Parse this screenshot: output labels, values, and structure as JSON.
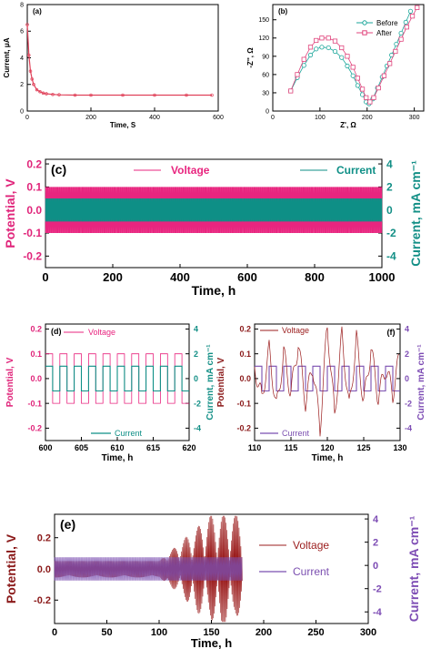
{
  "colors": {
    "voltage": "#e8257f",
    "current_teal": "#0e8f86",
    "current_purple": "#7b4fb0",
    "voltage_e": "#9b1c1c",
    "decay": "#e0425a",
    "eis": "#e0447c",
    "before": "#1aa69a",
    "axis_pink": "#e0247a",
    "axis_teal": "#138f86",
    "axis_purple": "#7d4cb4",
    "axis_red": "#8b1a1a"
  },
  "chart_data": [
    {
      "id": "a",
      "type": "line",
      "panel_label": "(a)",
      "xlabel": "Time, S",
      "ylabel": "Current, μA",
      "xlim": [
        0,
        600
      ],
      "ylim": [
        0,
        8
      ],
      "xticks": [
        "0",
        "200",
        "400",
        "600"
      ],
      "yticks": [
        "0",
        "2",
        "4",
        "6",
        "8"
      ],
      "series": [
        {
          "x": [
            0,
            5,
            10,
            15,
            20,
            30,
            40,
            50,
            60,
            80,
            100,
            150,
            200,
            300,
            400,
            500,
            580
          ],
          "values": [
            6.5,
            4.2,
            3.0,
            2.4,
            2.0,
            1.6,
            1.45,
            1.35,
            1.3,
            1.25,
            1.22,
            1.2,
            1.2,
            1.2,
            1.2,
            1.2,
            1.2
          ]
        }
      ]
    },
    {
      "id": "b",
      "type": "scatter",
      "panel_label": "(b)",
      "xlabel": "Z', Ω",
      "ylabel": "-Z'', Ω",
      "xlim": [
        0,
        320
      ],
      "ylim": [
        0,
        175
      ],
      "xticks": [
        "0",
        "100",
        "200",
        "300"
      ],
      "yticks": [
        "0",
        "30",
        "60",
        "90",
        "120",
        "150"
      ],
      "legend": "top-right",
      "series": [
        {
          "name": "Before",
          "x": [
            38,
            52,
            66,
            80,
            92,
            104,
            118,
            132,
            146,
            158,
            170,
            180,
            190,
            198,
            204,
            212,
            222,
            232,
            242,
            252,
            262,
            272,
            282,
            292
          ],
          "values": [
            33,
            55,
            75,
            92,
            102,
            105,
            104,
            98,
            88,
            74,
            58,
            42,
            27,
            15,
            12,
            20,
            38,
            56,
            74,
            92,
            110,
            128,
            146,
            164
          ]
        },
        {
          "name": "After",
          "x": [
            38,
            52,
            66,
            80,
            92,
            104,
            118,
            132,
            146,
            158,
            170,
            180,
            190,
            198,
            206,
            214,
            224,
            236,
            248,
            260,
            272,
            284,
            296,
            306
          ],
          "values": [
            33,
            60,
            85,
            105,
            116,
            120,
            120,
            115,
            104,
            90,
            72,
            54,
            36,
            22,
            15,
            22,
            38,
            58,
            78,
            98,
            118,
            138,
            156,
            170
          ]
        }
      ]
    },
    {
      "id": "c",
      "type": "line",
      "panel_label": "(c)",
      "xlabel": "Time, h",
      "ylabel": "Potential, V",
      "y2label": "Current, mA cm⁻¹",
      "xlim": [
        0,
        1000
      ],
      "ylim": [
        -0.25,
        0.22
      ],
      "y2lim": [
        -5,
        4.4
      ],
      "xticks": [
        "0",
        "200",
        "400",
        "600",
        "800",
        "1000"
      ],
      "yticks": [
        "-0.2",
        "-0.1",
        "0.0",
        "0.1",
        "0.2"
      ],
      "y2ticks": [
        "-4",
        "-2",
        "0",
        "2",
        "4"
      ],
      "legend": "top",
      "series": [
        {
          "name": "Voltage",
          "amplitude": 0.1,
          "period_h": 2
        },
        {
          "name": "Current",
          "amplitude": 1.0,
          "period_h": 2
        }
      ]
    },
    {
      "id": "d",
      "type": "line",
      "panel_label": "(d)",
      "xlabel": "Time, h",
      "ylabel": "Potential, V",
      "y2label": "Current, mA cm⁻¹",
      "xlim": [
        600,
        620
      ],
      "ylim": [
        -0.25,
        0.22
      ],
      "y2lim": [
        -5,
        4.4
      ],
      "xticks": [
        "600",
        "605",
        "610",
        "615",
        "620"
      ],
      "yticks": [
        "-0.2",
        "-0.1",
        "0.0",
        "0.1",
        "0.2"
      ],
      "y2ticks": [
        "-4",
        "-2",
        "0",
        "2",
        "4"
      ],
      "series": [
        {
          "name": "Voltage",
          "amplitude": 0.1,
          "period_h": 2
        },
        {
          "name": "Current",
          "amplitude": 1.0,
          "period_h": 2
        }
      ]
    },
    {
      "id": "f",
      "type": "line",
      "panel_label": "(f)",
      "xlabel": "Time, h",
      "ylabel": "Potential, V",
      "y2label": "Current, mA cm⁻¹",
      "xlim": [
        110,
        130
      ],
      "ylim": [
        -0.25,
        0.22
      ],
      "y2lim": [
        -5,
        4.4
      ],
      "xticks": [
        "110",
        "115",
        "120",
        "125",
        "130"
      ],
      "yticks": [
        "-0.2",
        "-0.1",
        "0.0",
        "0.1",
        "0.2"
      ],
      "y2ticks": [
        "-4",
        "-2",
        "0",
        "2",
        "4"
      ],
      "series": [
        {
          "name": "Voltage",
          "x": [
            110,
            111,
            112,
            113,
            114,
            115,
            116,
            117,
            118,
            119,
            120,
            121,
            122,
            123,
            124,
            125,
            126,
            127,
            128,
            129,
            130
          ],
          "values": [
            0.05,
            -0.08,
            0.12,
            -0.12,
            0.1,
            -0.06,
            0.14,
            -0.1,
            0.05,
            -0.2,
            0.22,
            -0.15,
            0.18,
            -0.12,
            0.16,
            -0.1,
            0.12,
            -0.08,
            0.04,
            -0.06,
            0.1
          ]
        },
        {
          "name": "Current",
          "amplitude": 1.0,
          "period_h": 2
        }
      ]
    },
    {
      "id": "e",
      "type": "line",
      "panel_label": "(e)",
      "xlabel": "Time, h",
      "ylabel": "Potential, V",
      "y2label": "Current, mA cm⁻¹",
      "xlim": [
        0,
        300
      ],
      "ylim": [
        -0.35,
        0.35
      ],
      "y2lim": [
        -5,
        4.4
      ],
      "xticks": [
        "0",
        "50",
        "100",
        "150",
        "200",
        "250",
        "300"
      ],
      "yticks": [
        "-0.2",
        "0.0",
        "0.2"
      ],
      "y2ticks": [
        "-4",
        "-2",
        "0",
        "2",
        "4"
      ],
      "legend": "right",
      "series": [
        {
          "name": "Voltage",
          "x_end": 180,
          "stable_until": 100,
          "amplitude": 0.05
        },
        {
          "name": "Current",
          "x_end": 180,
          "amplitude": 1.0
        }
      ]
    }
  ]
}
